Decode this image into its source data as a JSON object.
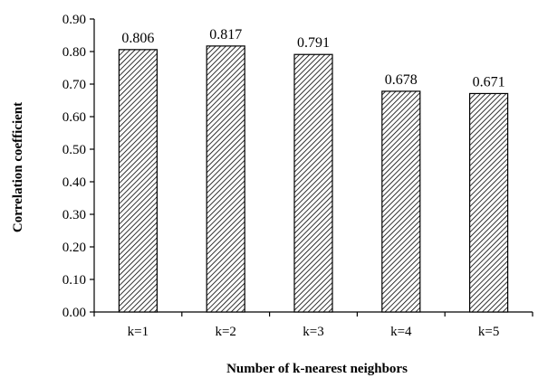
{
  "chart_data": {
    "type": "bar",
    "categories": [
      "k=1",
      "k=2",
      "k=3",
      "k=4",
      "k=5"
    ],
    "values": [
      0.806,
      0.817,
      0.791,
      0.678,
      0.671
    ],
    "data_labels": [
      "0.806",
      "0.817",
      "0.791",
      "0.678",
      "0.671"
    ],
    "xlabel": "Number  of k-nearest neighbors",
    "ylabel": "Correlation  coefficient",
    "ylim": [
      0,
      0.9
    ],
    "yticks": [
      "0.00",
      "0.10",
      "0.20",
      "0.30",
      "0.40",
      "0.50",
      "0.60",
      "0.70",
      "0.80",
      "0.90"
    ],
    "grid": false,
    "bar_fill": "hatched",
    "bar_color": "#000000"
  }
}
